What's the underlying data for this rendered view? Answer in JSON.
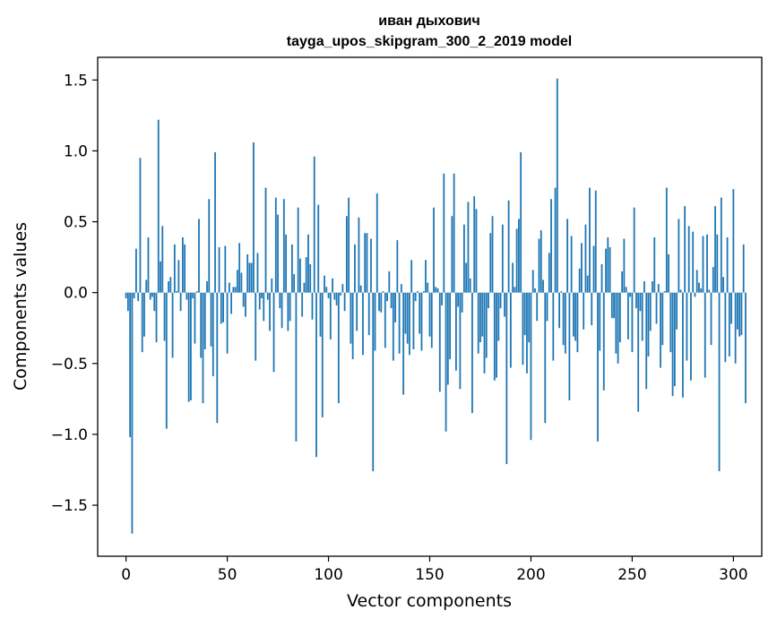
{
  "chart_data": {
    "type": "bar",
    "title": "иван дыхович",
    "subtitle": "tayga_upos_skipgram_300_2_2019 model",
    "xlabel": "Vector components",
    "ylabel": "Components values",
    "xlim": [
      -14,
      314
    ],
    "ylim": [
      -1.86,
      1.66
    ],
    "xticks": [
      0,
      50,
      100,
      150,
      200,
      250,
      300
    ],
    "yticks": [
      -1.5,
      -1.0,
      -0.5,
      0.0,
      0.5,
      1.0,
      1.5
    ],
    "ytick_labels": [
      "−1.5",
      "−1.0",
      "−0.5",
      "0.0",
      "0.5",
      "1.0",
      "1.5"
    ],
    "bar_color": "#1f77b4",
    "grid": false,
    "legend": "none",
    "values": [
      -0.04,
      -0.13,
      -1.02,
      -1.7,
      -0.04,
      0.31,
      -0.06,
      0.95,
      -0.42,
      -0.31,
      0.09,
      0.39,
      -0.05,
      -0.03,
      -0.13,
      -0.35,
      1.22,
      0.22,
      0.47,
      -0.34,
      -0.96,
      0.08,
      0.11,
      -0.46,
      0.34,
      0.01,
      0.23,
      -0.13,
      0.39,
      0.34,
      -0.05,
      -0.77,
      -0.76,
      -0.04,
      -0.36,
      0.01,
      0.52,
      -0.46,
      -0.78,
      -0.4,
      0.08,
      0.66,
      -0.38,
      -0.59,
      0.99,
      -0.92,
      0.32,
      -0.22,
      -0.21,
      0.33,
      -0.43,
      0.07,
      -0.15,
      0.04,
      0.04,
      0.16,
      0.35,
      0.14,
      -0.1,
      -0.17,
      0.27,
      0.21,
      0.21,
      1.06,
      -0.48,
      0.28,
      -0.12,
      -0.04,
      -0.2,
      0.74,
      -0.05,
      -0.27,
      0.1,
      -0.56,
      0.67,
      0.55,
      -0.11,
      -0.25,
      0.66,
      0.41,
      -0.27,
      -0.2,
      0.34,
      0.13,
      -1.05,
      0.6,
      0.24,
      -0.17,
      0.07,
      0.25,
      0.41,
      0.2,
      -0.19,
      0.96,
      -1.16,
      0.62,
      -0.31,
      -0.88,
      0.12,
      0.04,
      -0.04,
      -0.33,
      0.1,
      -0.05,
      -0.09,
      -0.78,
      -0.02,
      0.06,
      -0.13,
      0.54,
      0.67,
      -0.36,
      -0.47,
      0.34,
      -0.27,
      0.53,
      0.05,
      -0.44,
      0.42,
      0.42,
      -0.3,
      0.38,
      -1.26,
      -0.41,
      0.7,
      -0.13,
      -0.14,
      0.01,
      -0.39,
      -0.06,
      0.15,
      -0.11,
      -0.48,
      -0.21,
      0.37,
      -0.43,
      0.06,
      -0.72,
      -0.29,
      -0.36,
      -0.44,
      0.23,
      -0.4,
      -0.06,
      0.01,
      -0.29,
      -0.41,
      0.01,
      0.23,
      0.07,
      -0.31,
      -0.39,
      0.6,
      0.04,
      0.03,
      -0.7,
      -0.09,
      0.84,
      -0.98,
      -0.65,
      -0.47,
      0.54,
      0.84,
      -0.55,
      -0.1,
      -0.68,
      -0.14,
      0.48,
      0.21,
      0.64,
      0.1,
      -0.85,
      0.68,
      0.59,
      -0.43,
      -0.35,
      -0.31,
      -0.57,
      -0.46,
      -0.11,
      0.42,
      0.54,
      -0.62,
      -0.6,
      -0.34,
      -0.11,
      0.48,
      -0.17,
      -1.21,
      0.65,
      -0.53,
      0.21,
      0.04,
      0.45,
      0.52,
      0.99,
      -0.51,
      -0.3,
      -0.57,
      -0.35,
      -1.04,
      0.16,
      0.03,
      -0.2,
      0.38,
      0.44,
      0.09,
      -0.92,
      -0.2,
      0.28,
      0.66,
      -0.48,
      0.74,
      1.51,
      -0.25,
      0.01,
      -0.37,
      -0.43,
      0.52,
      -0.76,
      0.4,
      -0.31,
      -0.34,
      -0.42,
      0.17,
      0.35,
      -0.26,
      0.48,
      0.12,
      0.74,
      -0.23,
      0.33,
      0.72,
      -1.05,
      -0.41,
      0.2,
      -0.69,
      0.31,
      0.39,
      0.32,
      -0.18,
      -0.18,
      -0.43,
      -0.5,
      -0.35,
      0.15,
      0.38,
      0.04,
      -0.33,
      -0.03,
      -0.42,
      0.6,
      -0.11,
      -0.84,
      -0.13,
      -0.34,
      0.08,
      -0.68,
      -0.45,
      -0.27,
      0.08,
      0.39,
      -0.22,
      0.06,
      -0.53,
      -0.37,
      0.01,
      0.74,
      0.27,
      -0.42,
      -0.73,
      -0.66,
      -0.26,
      0.52,
      0.02,
      -0.74,
      0.61,
      -0.48,
      0.47,
      -0.62,
      0.43,
      -0.03,
      0.16,
      0.07,
      0.03,
      0.4,
      -0.6,
      0.41,
      0.02,
      -0.37,
      0.18,
      0.61,
      0.41,
      -1.26,
      0.67,
      0.11,
      -0.49,
      0.39,
      -0.45,
      -0.22,
      0.73,
      -0.5,
      -0.26,
      -0.31,
      -0.3,
      0.34,
      -0.78
    ]
  }
}
